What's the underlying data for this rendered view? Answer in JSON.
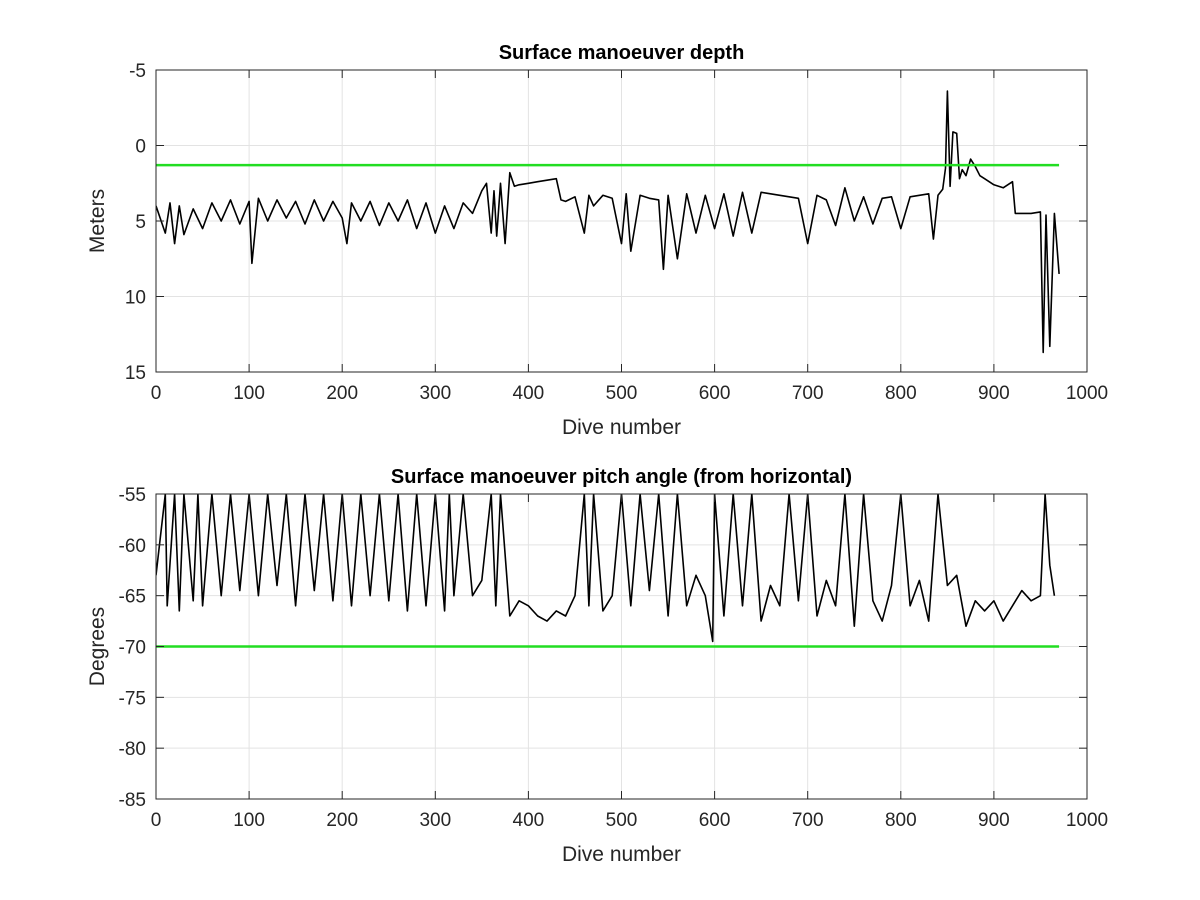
{
  "chart_data": [
    {
      "type": "line",
      "title": "Surface manoeuver depth",
      "xlabel": "Dive number",
      "ylabel": "Meters",
      "xlim": [
        0,
        1000
      ],
      "ylim": [
        -5,
        15
      ],
      "y_reversed": true,
      "xticks": [
        "0",
        "100",
        "200",
        "300",
        "400",
        "500",
        "600",
        "700",
        "800",
        "900",
        "1000"
      ],
      "yticks": [
        "-5",
        "0",
        "5",
        "10",
        "15"
      ],
      "ytick_values": [
        -5,
        0,
        5,
        10,
        15
      ],
      "grid": true,
      "series": [
        {
          "color": "#000000",
          "style": "line",
          "x": [
            0,
            10,
            15,
            20,
            25,
            30,
            40,
            50,
            60,
            70,
            80,
            90,
            100,
            103,
            110,
            120,
            130,
            140,
            150,
            160,
            170,
            180,
            190,
            200,
            205,
            210,
            220,
            230,
            240,
            250,
            260,
            270,
            280,
            290,
            300,
            310,
            320,
            330,
            340,
            350,
            355,
            360,
            363,
            366,
            370,
            375,
            380,
            385,
            390,
            400,
            410,
            420,
            430,
            435,
            440,
            450,
            460,
            465,
            470,
            480,
            490,
            500,
            505,
            510,
            520,
            530,
            540,
            545,
            550,
            560,
            570,
            580,
            590,
            600,
            610,
            620,
            630,
            640,
            650,
            660,
            670,
            680,
            690,
            700,
            710,
            720,
            730,
            740,
            750,
            760,
            770,
            780,
            790,
            800,
            810,
            820,
            830,
            835,
            840,
            845,
            848,
            850,
            853,
            856,
            860,
            863,
            866,
            870,
            875,
            880,
            885,
            890,
            900,
            910,
            920,
            923,
            930,
            940,
            950,
            953,
            956,
            960,
            965,
            970
          ],
          "y": [
            4.0,
            5.8,
            3.8,
            6.5,
            4.0,
            5.9,
            4.2,
            5.5,
            3.8,
            5.0,
            3.6,
            5.2,
            3.7,
            7.8,
            3.5,
            5.0,
            3.6,
            4.8,
            3.7,
            5.2,
            3.6,
            5.0,
            3.7,
            4.8,
            6.5,
            3.8,
            5.0,
            3.7,
            5.3,
            3.8,
            5.0,
            3.6,
            5.5,
            3.8,
            5.8,
            4.0,
            5.5,
            3.8,
            4.5,
            3.0,
            2.5,
            5.8,
            3.0,
            6.0,
            2.5,
            6.5,
            1.8,
            2.7,
            2.6,
            2.5,
            2.4,
            2.3,
            2.2,
            3.6,
            3.7,
            3.4,
            5.8,
            3.3,
            4.0,
            3.3,
            3.5,
            6.5,
            3.2,
            7.0,
            3.3,
            3.5,
            3.6,
            8.2,
            3.3,
            7.5,
            3.2,
            5.8,
            3.3,
            5.5,
            3.2,
            6.0,
            3.1,
            5.8,
            3.1,
            3.2,
            3.3,
            3.4,
            3.5,
            6.5,
            3.3,
            3.6,
            5.3,
            2.8,
            5.0,
            3.4,
            5.2,
            3.5,
            3.4,
            5.5,
            3.4,
            3.3,
            3.2,
            6.2,
            3.3,
            2.9,
            1.5,
            -3.6,
            2.7,
            -0.9,
            -0.8,
            2.2,
            1.6,
            2.0,
            0.9,
            1.4,
            2.0,
            2.2,
            2.6,
            2.8,
            2.4,
            4.5,
            4.5,
            4.5,
            4.4,
            13.7,
            4.6,
            13.3,
            4.5,
            8.5
          ]
        },
        {
          "color": "#22dd22",
          "style": "hline",
          "y_value": 1.3,
          "x_range": [
            0,
            970
          ]
        }
      ]
    },
    {
      "type": "line",
      "title": "Surface manoeuver pitch angle (from horizontal)",
      "xlabel": "Dive number",
      "ylabel": "Degrees",
      "xlim": [
        0,
        1000
      ],
      "ylim": [
        -85,
        -55
      ],
      "xticks": [
        "0",
        "100",
        "200",
        "300",
        "400",
        "500",
        "600",
        "700",
        "800",
        "900",
        "1000"
      ],
      "yticks": [
        "-55",
        "-60",
        "-65",
        "-70",
        "-75",
        "-80",
        "-85"
      ],
      "ytick_values": [
        -55,
        -60,
        -65,
        -70,
        -75,
        -80,
        -85
      ],
      "grid": true,
      "series": [
        {
          "color": "#000000",
          "style": "line",
          "x": [
            0,
            10,
            12,
            20,
            25,
            30,
            40,
            45,
            50,
            60,
            70,
            80,
            90,
            100,
            110,
            120,
            130,
            140,
            150,
            160,
            170,
            180,
            190,
            200,
            210,
            220,
            230,
            240,
            250,
            260,
            270,
            280,
            290,
            300,
            310,
            315,
            320,
            330,
            340,
            350,
            360,
            365,
            370,
            380,
            390,
            400,
            410,
            420,
            430,
            440,
            450,
            460,
            465,
            470,
            480,
            490,
            500,
            510,
            520,
            530,
            540,
            550,
            560,
            570,
            580,
            590,
            598,
            600,
            610,
            620,
            630,
            640,
            650,
            660,
            670,
            680,
            690,
            700,
            710,
            720,
            730,
            740,
            750,
            760,
            770,
            780,
            790,
            800,
            810,
            820,
            830,
            840,
            850,
            860,
            870,
            880,
            890,
            900,
            910,
            920,
            930,
            940,
            950,
            955,
            960,
            965
          ],
          "y": [
            -63.0,
            -55.0,
            -66.0,
            -55.0,
            -66.5,
            -55.0,
            -65.5,
            -55.0,
            -66.0,
            -55.0,
            -65.0,
            -55.0,
            -64.5,
            -55.0,
            -65.0,
            -55.0,
            -64.0,
            -55.0,
            -66.0,
            -55.0,
            -64.5,
            -55.0,
            -65.5,
            -55.0,
            -66.0,
            -55.0,
            -65.0,
            -55.0,
            -65.5,
            -55.0,
            -66.5,
            -55.0,
            -66.0,
            -55.0,
            -66.5,
            -55.0,
            -65.0,
            -55.0,
            -65.0,
            -63.5,
            -55.0,
            -66.0,
            -55.0,
            -67.0,
            -65.5,
            -66.0,
            -67.0,
            -67.5,
            -66.5,
            -67.0,
            -65.0,
            -55.0,
            -66.0,
            -55.0,
            -66.5,
            -65.0,
            -55.0,
            -66.0,
            -55.0,
            -64.5,
            -55.0,
            -67.0,
            -55.0,
            -66.0,
            -63.0,
            -65.0,
            -69.5,
            -55.0,
            -67.0,
            -55.0,
            -66.0,
            -55.0,
            -67.5,
            -64.0,
            -66.0,
            -55.0,
            -65.5,
            -55.0,
            -67.0,
            -63.5,
            -66.0,
            -55.0,
            -68.0,
            -55.0,
            -65.5,
            -67.5,
            -64.0,
            -55.0,
            -66.0,
            -63.5,
            -67.5,
            -55.0,
            -64.0,
            -63.0,
            -68.0,
            -65.5,
            -66.5,
            -65.5,
            -67.5,
            -66.0,
            -64.5,
            -65.5,
            -65.0,
            -55.0,
            -62.0,
            -65.0
          ]
        },
        {
          "color": "#22dd22",
          "style": "hline",
          "y_value": -70,
          "x_range": [
            0,
            970
          ]
        }
      ]
    }
  ]
}
